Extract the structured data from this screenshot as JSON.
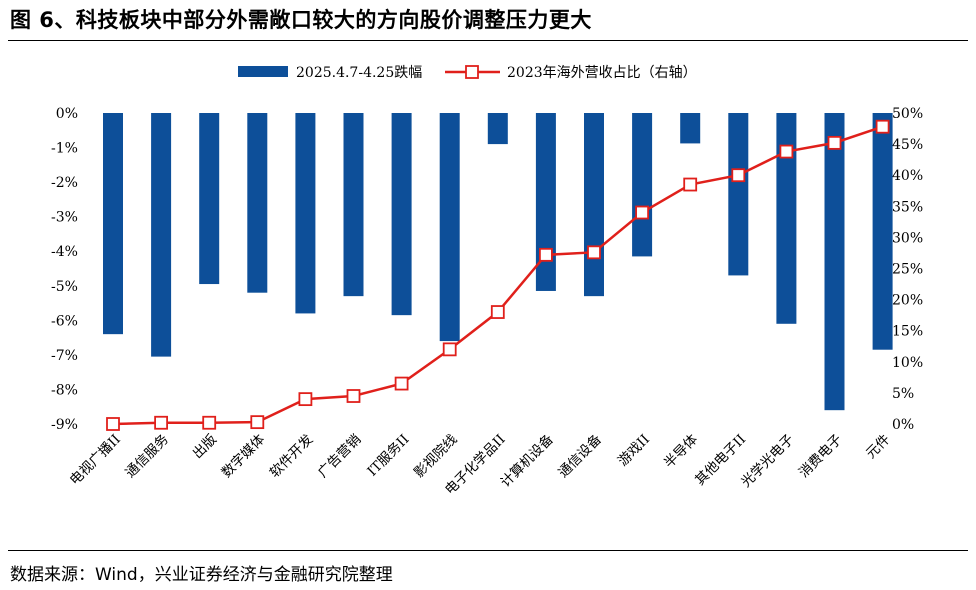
{
  "header": {
    "title": "图 6、科技板块中部分外需敞口较大的方向股价调整压力更大"
  },
  "footer": {
    "source": "数据来源：Wind，兴业证券经济与金融研究院整理"
  },
  "colors": {
    "bar": "#0d4f99",
    "line": "#e0201b",
    "marker_fill": "#ffffff"
  },
  "chart_data": {
    "type": "bar",
    "categories": [
      "电视广播II",
      "通信服务",
      "出版",
      "数字媒体",
      "软件开发",
      "广告营销",
      "IT服务II",
      "影视院线",
      "电子化学品II",
      "计算机设备",
      "通信设备",
      "游戏II",
      "半导体",
      "其他电子II",
      "光学光电子",
      "消费电子",
      "元件"
    ],
    "series": [
      {
        "name": "2025.4.7-4.25跌幅",
        "type": "bar",
        "axis": "left",
        "values": [
          -6.4,
          -7.05,
          -4.95,
          -5.2,
          -5.8,
          -5.3,
          -5.85,
          -6.6,
          -0.9,
          -5.15,
          -5.3,
          -4.15,
          -0.88,
          -4.7,
          -6.1,
          -8.6,
          -6.85
        ]
      },
      {
        "name": "2023年海外营收占比（右轴）",
        "type": "line",
        "axis": "right",
        "values": [
          0.0,
          0.2,
          0.2,
          0.3,
          4.0,
          4.5,
          6.5,
          12.0,
          18.0,
          27.2,
          27.6,
          34.0,
          38.5,
          40.0,
          43.8,
          45.2,
          47.8
        ]
      }
    ],
    "y_left": {
      "min": -9,
      "max": 0,
      "ticks": [
        "0%",
        "-1%",
        "-2%",
        "-3%",
        "-4%",
        "-5%",
        "-6%",
        "-7%",
        "-8%",
        "-9%"
      ]
    },
    "y_right": {
      "min": 0,
      "max": 50,
      "ticks": [
        "50%",
        "45%",
        "40%",
        "35%",
        "30%",
        "25%",
        "20%",
        "15%",
        "10%",
        "5%",
        "0%"
      ]
    },
    "legend": {
      "position": "top-center",
      "bar_label": "2025.4.7-4.25跌幅",
      "line_label": "2023年海外营收占比（右轴）"
    },
    "grid": false
  }
}
